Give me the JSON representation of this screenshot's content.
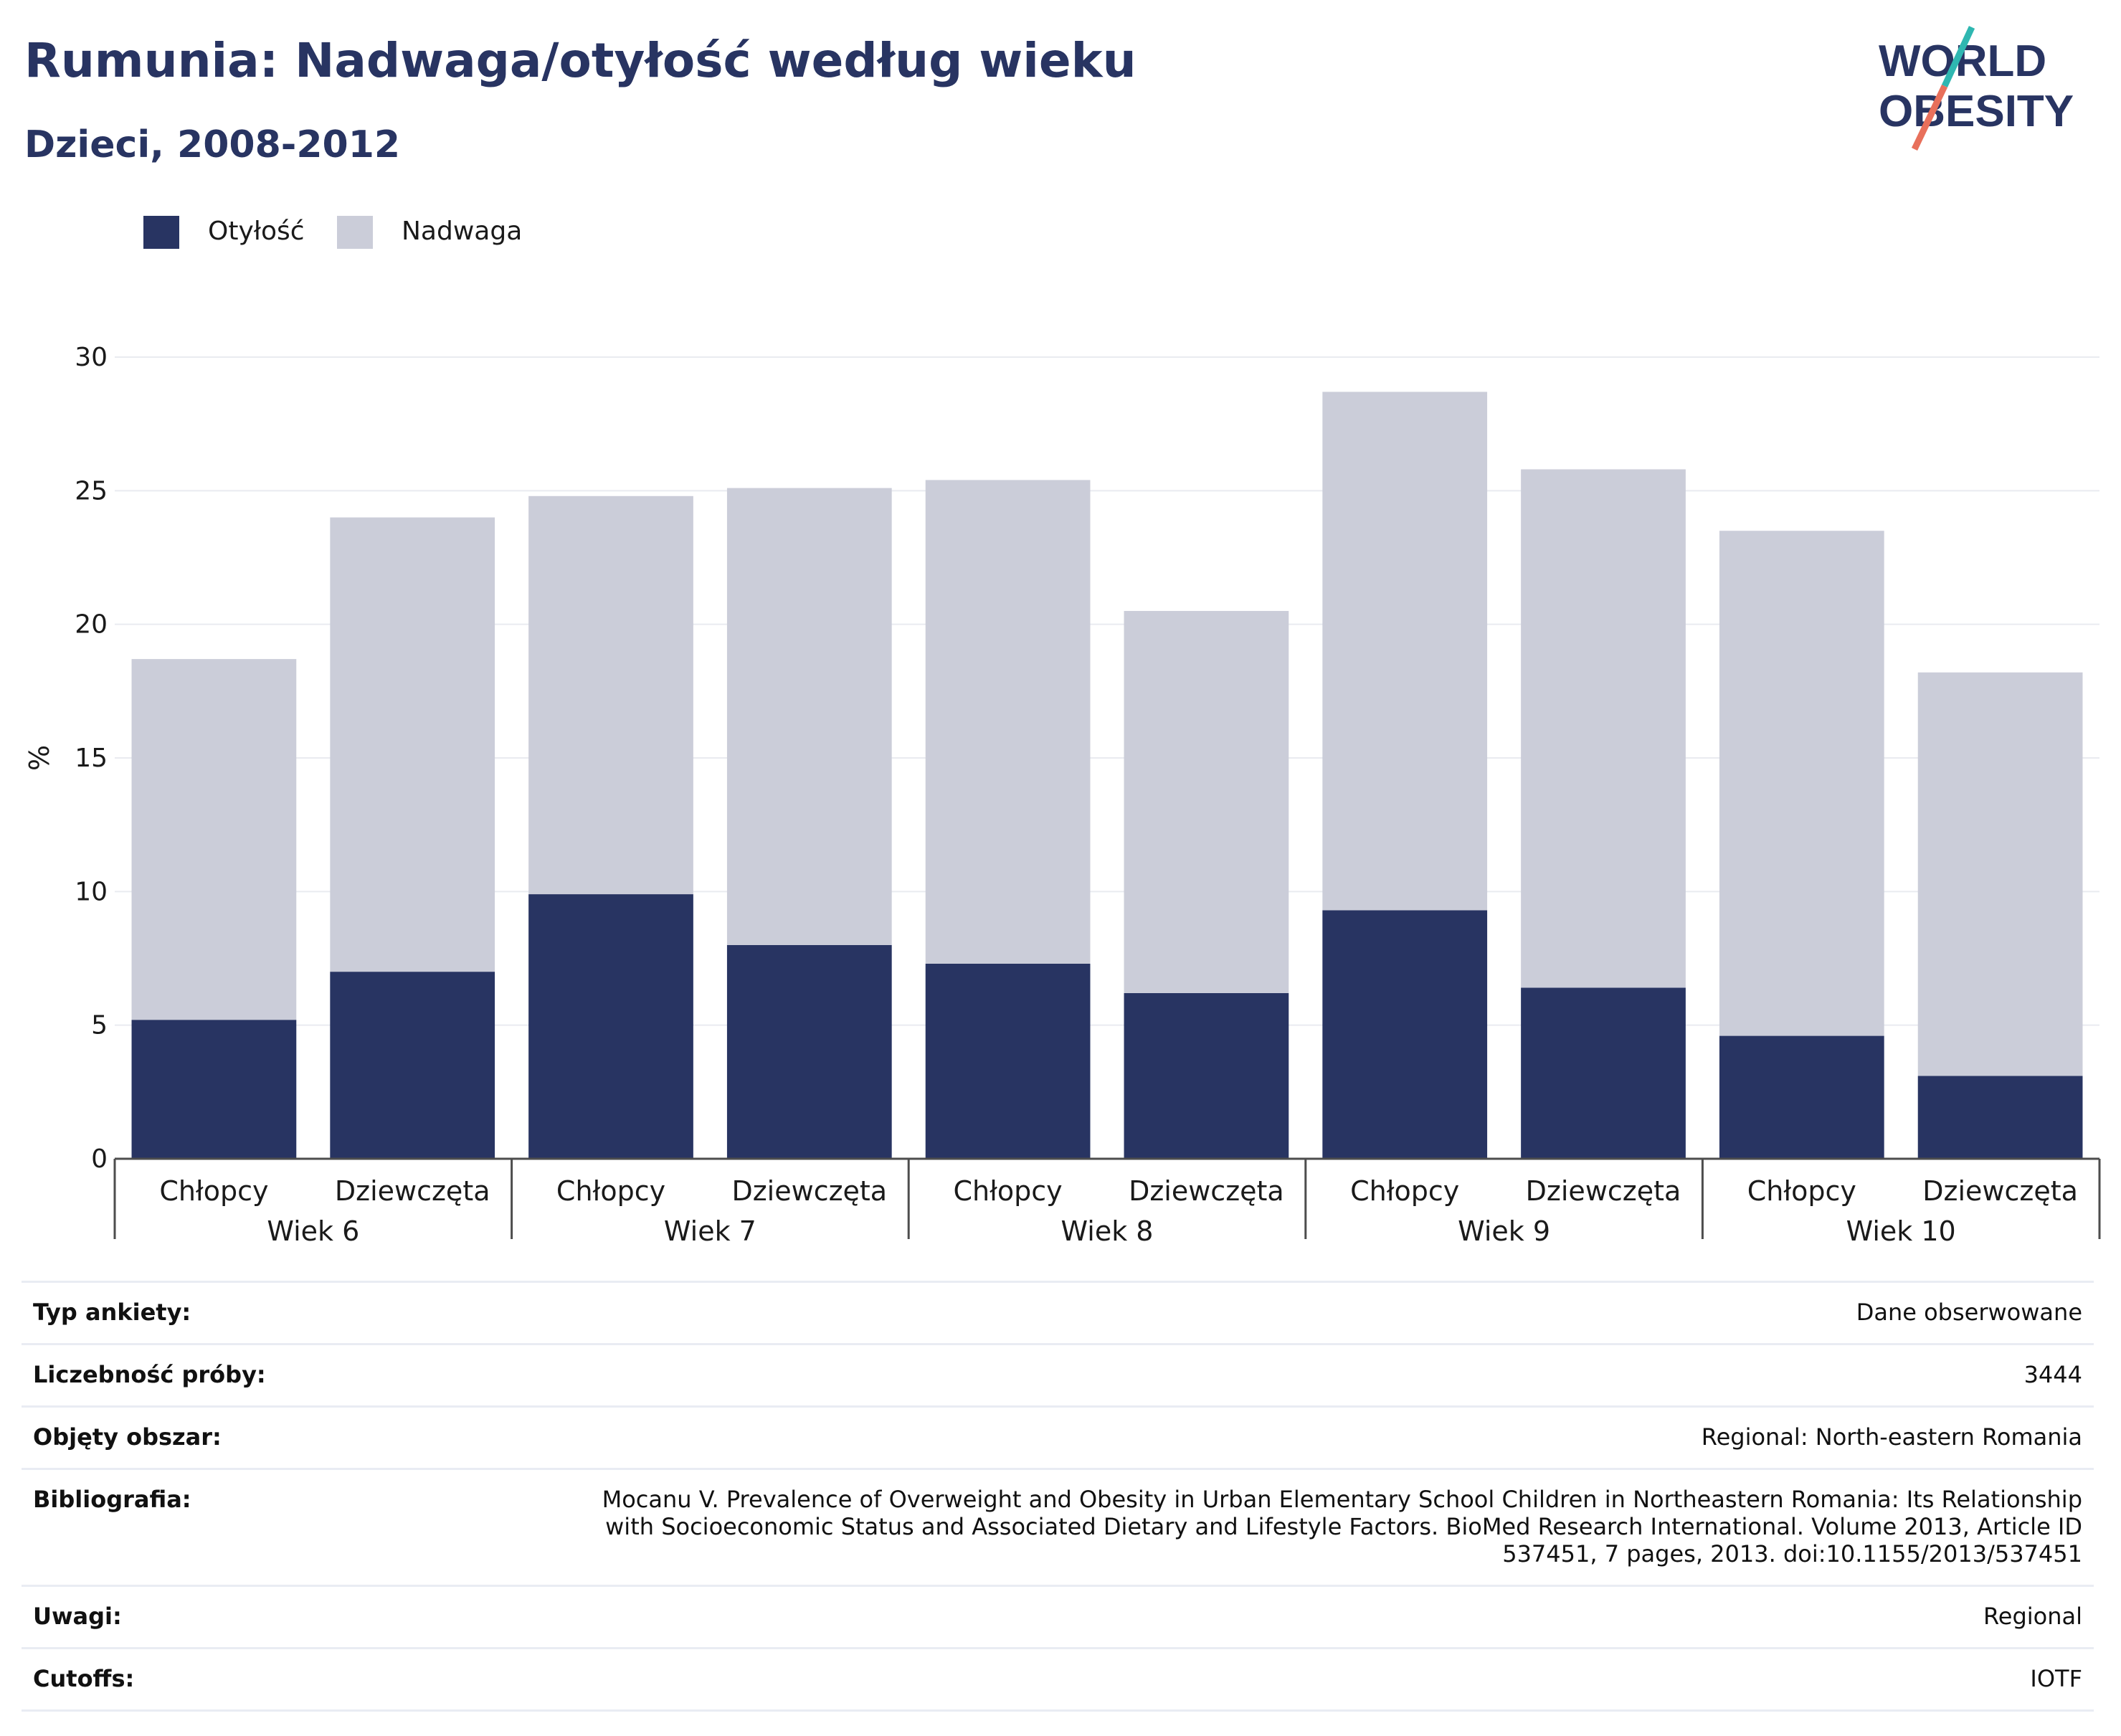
{
  "header": {
    "title": "Rumunia: Nadwaga/otyłość według wieku",
    "subtitle": "Dzieci, 2008-2012"
  },
  "logo": {
    "line1": "WORLD",
    "line2": "OBESITY"
  },
  "colors": {
    "obesity": "#283462",
    "overweight": "#cbcdd9",
    "title": "#283462",
    "logo_teal": "#2fb7b1",
    "logo_coral": "#e8705b"
  },
  "legend": [
    {
      "label": "Otyłość",
      "color": "#283462"
    },
    {
      "label": "Nadwaga",
      "color": "#cbcdd9"
    }
  ],
  "chart_data": {
    "type": "bar",
    "stacked": true,
    "ylabel": "%",
    "ylim": [
      0,
      30
    ],
    "yticks": [
      0,
      5,
      10,
      15,
      20,
      25,
      30
    ],
    "grid": true,
    "legend_position": "top-left",
    "groups": [
      "Wiek 6",
      "Wiek 7",
      "Wiek 8",
      "Wiek 9",
      "Wiek 10"
    ],
    "categories": [
      "Chłopcy",
      "Dziewczęta",
      "Chłopcy",
      "Dziewczęta",
      "Chłopcy",
      "Dziewczęta",
      "Chłopcy",
      "Dziewczęta",
      "Chłopcy",
      "Dziewczęta"
    ],
    "series": [
      {
        "name": "Otyłość",
        "values": [
          5.2,
          7.0,
          9.9,
          8.0,
          7.3,
          6.2,
          9.3,
          6.4,
          4.6,
          3.1
        ]
      },
      {
        "name": "Nadwaga",
        "values": [
          13.5,
          17.0,
          14.9,
          17.1,
          18.1,
          14.3,
          19.4,
          19.4,
          18.9,
          15.1
        ]
      }
    ]
  },
  "info": [
    {
      "key": "Typ ankiety:",
      "value": "Dane obserwowane"
    },
    {
      "key": "Liczebność próby:",
      "value": "3444"
    },
    {
      "key": "Objęty obszar:",
      "value": "Regional: North-eastern Romania"
    },
    {
      "key": "Bibliografia:",
      "value": "Mocanu V. Prevalence of Overweight and Obesity in Urban Elementary School Children in Northeastern Romania: Its Relationship with Socioeconomic Status and Associated Dietary and Lifestyle Factors. BioMed Research International. Volume 2013, Article ID 537451, 7 pages, 2013. doi:10.1155/2013/537451"
    },
    {
      "key": "Uwagi:",
      "value": "Regional"
    },
    {
      "key": "Cutoffs:",
      "value": "IOTF"
    }
  ]
}
